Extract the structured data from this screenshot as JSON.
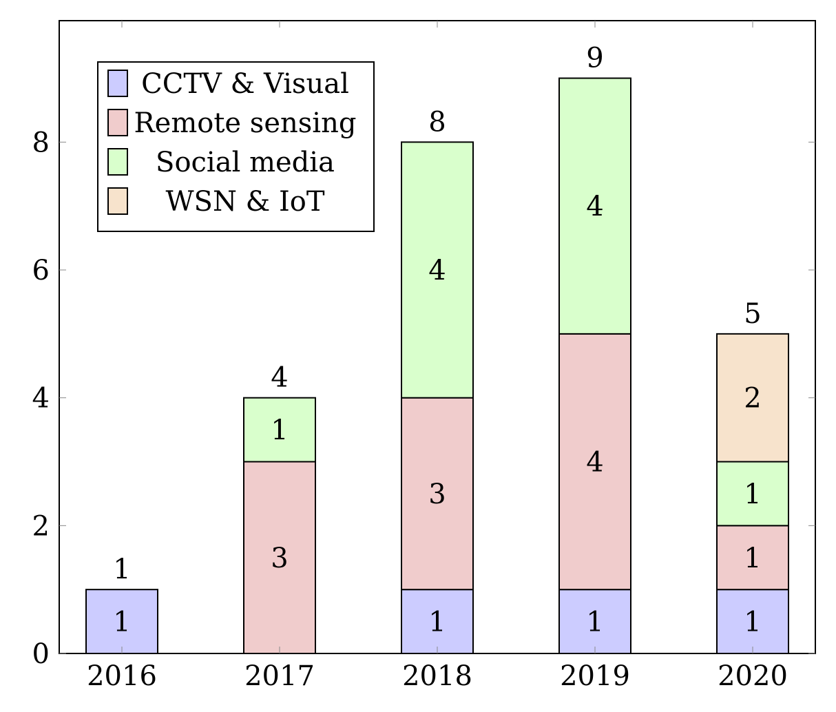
{
  "chart_data": {
    "type": "bar",
    "stacked": true,
    "categories": [
      "2016",
      "2017",
      "2018",
      "2019",
      "2020"
    ],
    "series": [
      {
        "name": "CCTV & Visual",
        "values": [
          1,
          0,
          1,
          1,
          1
        ],
        "color": "#ccccff"
      },
      {
        "name": "Remote sensing",
        "values": [
          0,
          3,
          3,
          4,
          1
        ],
        "color": "#f0cccc"
      },
      {
        "name": "Social media",
        "values": [
          0,
          1,
          4,
          4,
          1
        ],
        "color": "#d9ffcc"
      },
      {
        "name": "WSN & IoT",
        "values": [
          0,
          0,
          0,
          0,
          2
        ],
        "color": "#f7e3cc"
      }
    ],
    "totals": [
      1,
      4,
      8,
      9,
      5
    ],
    "ylim": [
      0,
      9.9
    ],
    "yticks": [
      0,
      2,
      4,
      6,
      8
    ],
    "legend": {
      "position": "top-left"
    },
    "grid": false
  }
}
